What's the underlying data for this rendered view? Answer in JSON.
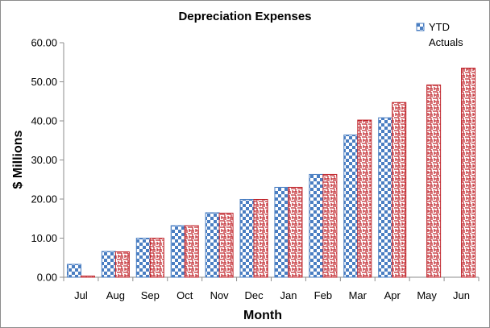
{
  "chart_data": {
    "type": "bar",
    "title": "Depreciation Expenses",
    "xlabel": "Month",
    "ylabel": "$ Millions",
    "ylim": [
      0,
      60
    ],
    "yticks": [
      0,
      10,
      20,
      30,
      40,
      50,
      60
    ],
    "ytick_labels": [
      "0.00",
      "10.00",
      "20.00",
      "30.00",
      "40.00",
      "50.00",
      "60.00"
    ],
    "grid": false,
    "legend_position": "top-right",
    "categories": [
      "Jul",
      "Aug",
      "Sep",
      "Oct",
      "Nov",
      "Dec",
      "Jan",
      "Feb",
      "Mar",
      "Apr",
      "May",
      "Jun"
    ],
    "series": [
      {
        "name": "YTD Actuals",
        "color": "#4a7ec2",
        "pattern": "checkerboard",
        "values": [
          3.3,
          6.6,
          10.0,
          13.2,
          16.5,
          19.9,
          23.0,
          26.3,
          36.4,
          40.8,
          null,
          null
        ]
      },
      {
        "name": "",
        "color": "#c0242b",
        "pattern": "maze",
        "values": [
          0.3,
          6.5,
          10.0,
          13.2,
          16.4,
          19.9,
          23.0,
          26.3,
          40.2,
          44.7,
          49.2,
          53.5
        ]
      }
    ]
  }
}
